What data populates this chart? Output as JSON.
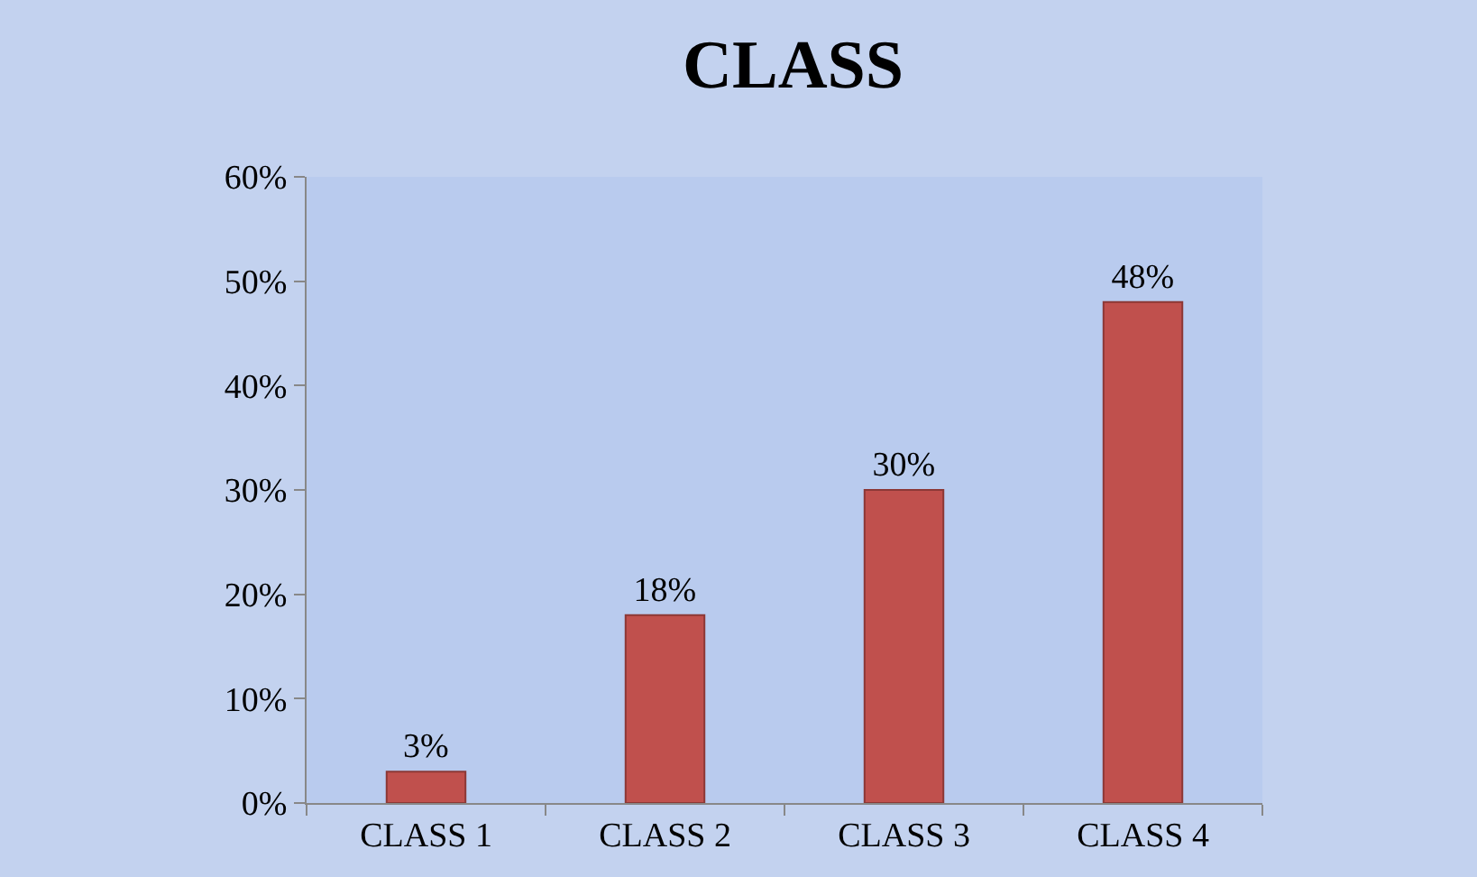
{
  "chart_data": {
    "type": "bar",
    "title": "CLASS",
    "categories": [
      "CLASS 1",
      "CLASS 2",
      "CLASS 3",
      "CLASS 4"
    ],
    "values": [
      3,
      18,
      30,
      48
    ],
    "value_labels": [
      "3%",
      "18%",
      "30%",
      "48%"
    ],
    "color": "#c0504d",
    "ylim": [
      0,
      60
    ],
    "yticks": [
      {
        "value": 0,
        "label": "0%"
      },
      {
        "value": 10,
        "label": "10%"
      },
      {
        "value": 20,
        "label": "20%"
      },
      {
        "value": 30,
        "label": "30%"
      },
      {
        "value": 40,
        "label": "40%"
      },
      {
        "value": 50,
        "label": "50%"
      },
      {
        "value": 60,
        "label": "60%"
      }
    ],
    "grid": false,
    "legend": false
  }
}
